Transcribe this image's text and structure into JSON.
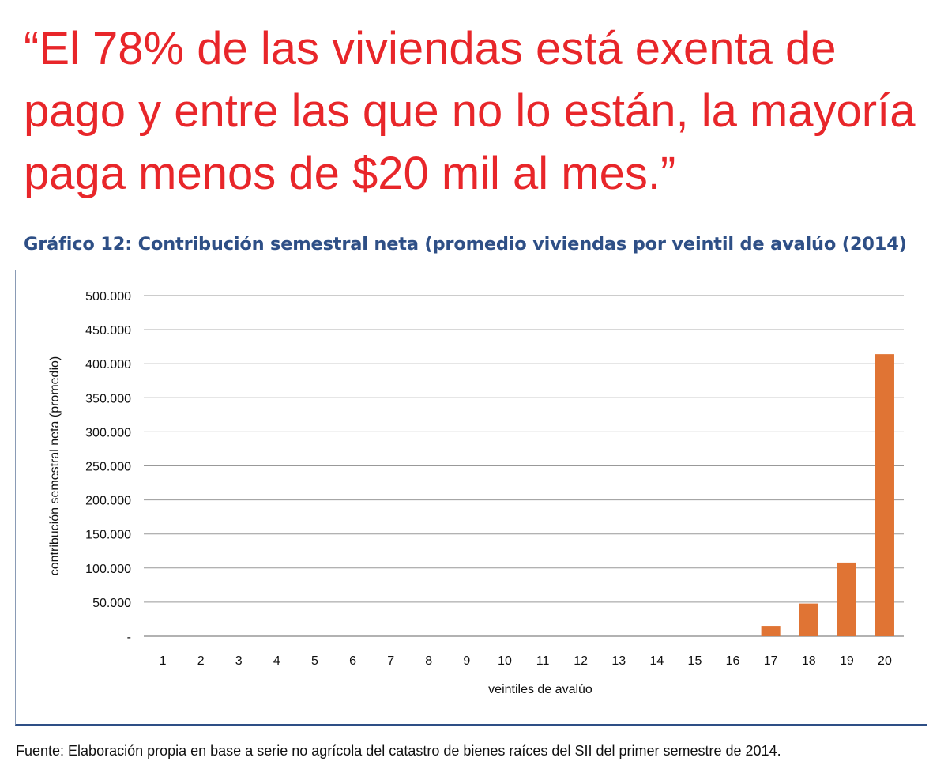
{
  "headline": "“El 78% de las viviendas está exenta de pago y entre las que no lo están, la mayoría paga menos de $20 mil al mes.”",
  "chart_title": "Gráfico 12: Contribución semestral neta (promedio viviendas por veintil de avalúo (2014)",
  "source_note": "Fuente: Elaboración propia en base a serie no agrícola del catastro de bienes raíces del SII del primer semestre de 2014.",
  "colors": {
    "headline": "#e8262a",
    "title": "#2e4f86",
    "bar": "#e07434",
    "grid": "#999999"
  },
  "chart_data": {
    "type": "bar",
    "title": "Gráfico 12: Contribución semestral neta (promedio viviendas por veintil de avalúo (2014)",
    "xlabel": "veintiles de avalúo",
    "ylabel": "contribución semestral neta (promedio)",
    "categories": [
      "1",
      "2",
      "3",
      "4",
      "5",
      "6",
      "7",
      "8",
      "9",
      "10",
      "11",
      "12",
      "13",
      "14",
      "15",
      "16",
      "17",
      "18",
      "19",
      "20"
    ],
    "values": [
      0,
      0,
      0,
      0,
      0,
      0,
      0,
      0,
      0,
      0,
      0,
      0,
      0,
      0,
      0,
      0,
      15000,
      48000,
      108000,
      414000
    ],
    "ylim": [
      0,
      500000
    ],
    "yticks": [
      0,
      50000,
      100000,
      150000,
      200000,
      250000,
      300000,
      350000,
      400000,
      450000,
      500000
    ],
    "ytick_labels": [
      "-",
      "50.000",
      "100.000",
      "150.000",
      "200.000",
      "250.000",
      "300.000",
      "350.000",
      "400.000",
      "450.000",
      "500.000"
    ],
    "grid": true
  }
}
